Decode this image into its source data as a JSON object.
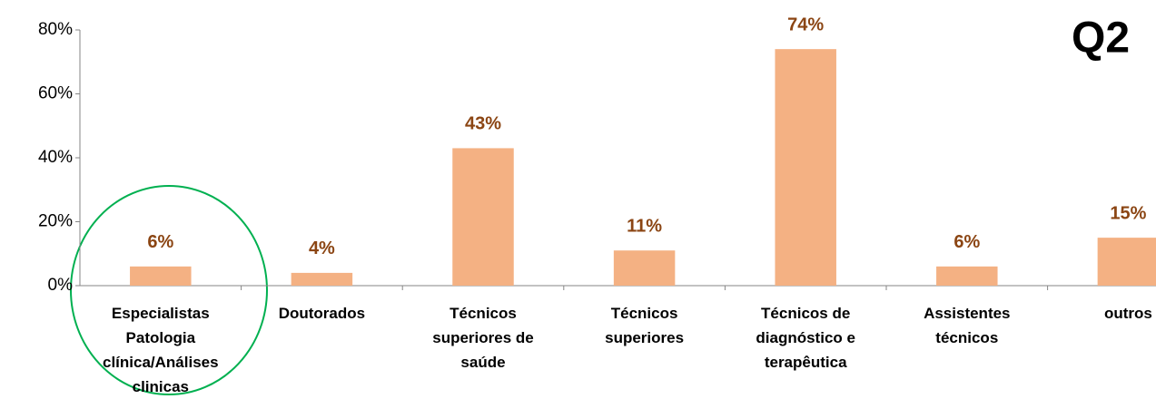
{
  "chart_data": {
    "type": "bar",
    "annotation": "Q2",
    "categories": [
      "Especialistas Patologia clínica/Análises clinicas",
      "Doutorados",
      "Técnicos superiores de saúde",
      "Técnicos superiores",
      "Técnicos de diagnóstico e terapêutica",
      "Assistentes técnicos",
      "outros"
    ],
    "values": [
      6,
      4,
      43,
      11,
      74,
      6,
      15
    ],
    "value_labels": [
      "6%",
      "4%",
      "43%",
      "11%",
      "74%",
      "6%",
      "15%"
    ],
    "color": "#f4b183",
    "label_color": "#8b4513",
    "ylim": [
      0,
      80
    ],
    "yticks": [
      {
        "value": 0,
        "label": "0%"
      },
      {
        "value": 20,
        "label": "20%"
      },
      {
        "value": 40,
        "label": "40%"
      },
      {
        "value": 60,
        "label": "60%"
      },
      {
        "value": 80,
        "label": "80%"
      }
    ],
    "grid": false
  }
}
